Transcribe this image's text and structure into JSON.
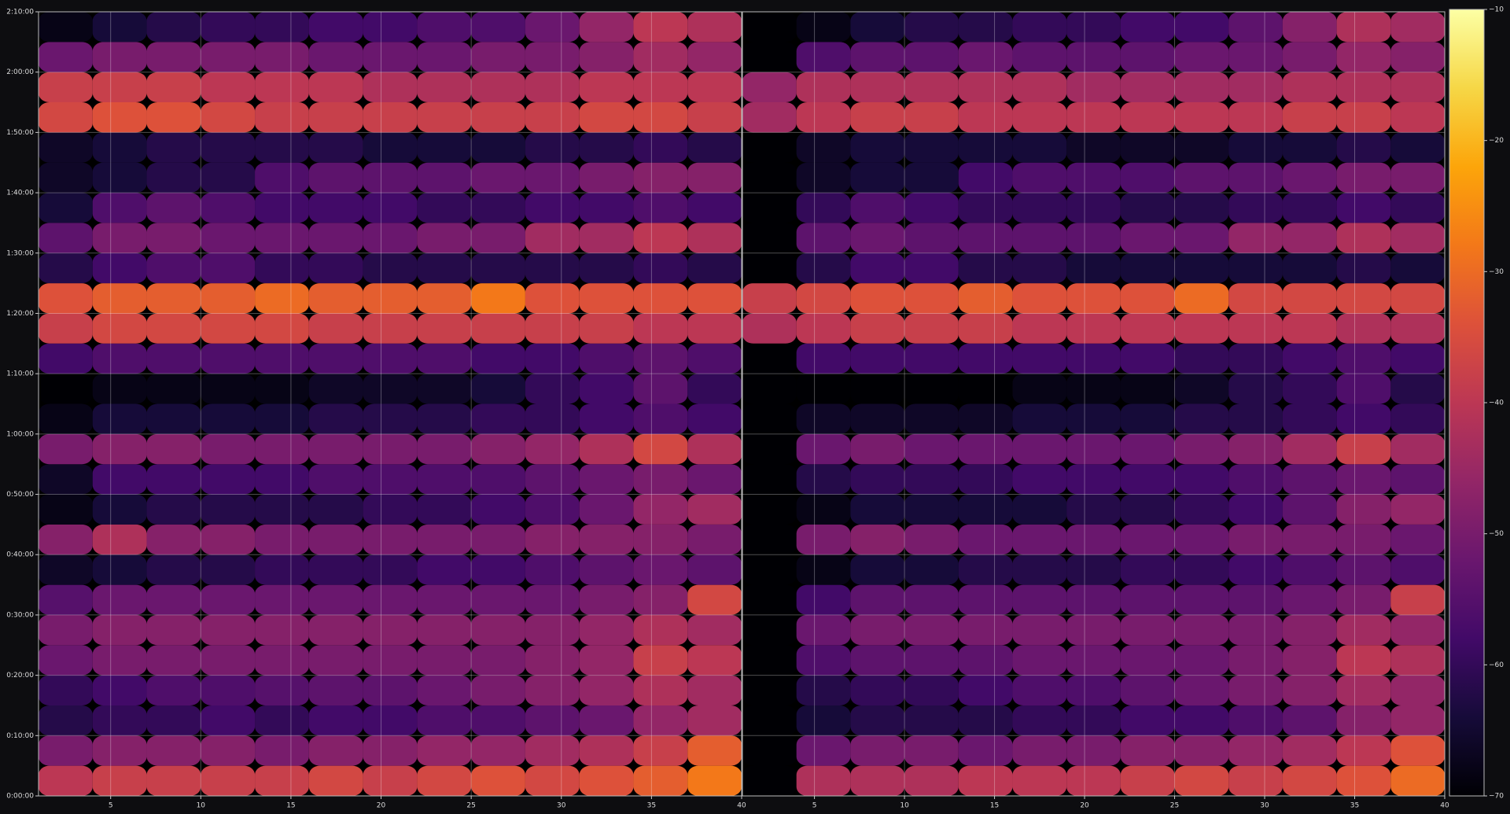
{
  "chart_data": [
    {
      "type": "heatmap",
      "colormap": "inferno",
      "clim": [
        -70,
        -10
      ],
      "grid": true,
      "show_ytick_labels": true,
      "xlim": [
        1,
        40
      ],
      "ylim": [
        0,
        130
      ],
      "xticks": [
        5,
        10,
        15,
        20,
        25,
        30,
        35,
        40
      ],
      "yticks": [
        {
          "value": 0,
          "label": "0:00:00"
        },
        {
          "value": 10,
          "label": "0:10:00"
        },
        {
          "value": 20,
          "label": "0:20:00"
        },
        {
          "value": 30,
          "label": "0:30:00"
        },
        {
          "value": 40,
          "label": "0:40:00"
        },
        {
          "value": 50,
          "label": "0:50:00"
        },
        {
          "value": 60,
          "label": "1:00:00"
        },
        {
          "value": 70,
          "label": "1:10:00"
        },
        {
          "value": 80,
          "label": "1:20:00"
        },
        {
          "value": 90,
          "label": "1:30:00"
        },
        {
          "value": 100,
          "label": "1:40:00"
        },
        {
          "value": 110,
          "label": "1:50:00"
        },
        {
          "value": 120,
          "label": "2:00:00"
        },
        {
          "value": 130,
          "label": "2:10:00"
        }
      ],
      "x": [
        2.5,
        5.5,
        8.5,
        11.5,
        14.5,
        17.5,
        20.5,
        23.5,
        26.5,
        29.5,
        32.5,
        35.5,
        38.5
      ],
      "y": [
        2.5,
        7.5,
        12.5,
        17.5,
        22.5,
        27.5,
        32.5,
        37.5,
        42.5,
        47.5,
        52.5,
        57.5,
        62.5,
        67.5,
        72.5,
        77.5,
        82.5,
        87.5,
        92.5,
        97.5,
        102.5,
        107.5,
        112.5,
        117.5,
        122.5,
        127.5
      ],
      "values": [
        [
          -40,
          -38,
          -38,
          -38,
          -38,
          -36,
          -38,
          -36,
          -34,
          -36,
          -34,
          -32,
          -28
        ],
        [
          -50,
          -48,
          -48,
          -48,
          -50,
          -48,
          -48,
          -46,
          -46,
          -44,
          -42,
          -38,
          -32
        ],
        [
          -62,
          -60,
          -60,
          -58,
          -60,
          -58,
          -58,
          -56,
          -56,
          -54,
          -52,
          -46,
          -44
        ],
        [
          -60,
          -58,
          -56,
          -56,
          -55,
          -54,
          -54,
          -52,
          -50,
          -48,
          -46,
          -42,
          -44
        ],
        [
          -52,
          -50,
          -50,
          -50,
          -50,
          -50,
          -50,
          -50,
          -50,
          -48,
          -46,
          -38,
          -40
        ],
        [
          -50,
          -48,
          -48,
          -48,
          -48,
          -48,
          -48,
          -48,
          -48,
          -48,
          -46,
          -42,
          -44
        ],
        [
          -55,
          -52,
          -52,
          -52,
          -52,
          -52,
          -52,
          -52,
          -52,
          -52,
          -50,
          -48,
          -36
        ],
        [
          -66,
          -64,
          -62,
          -62,
          -60,
          -60,
          -60,
          -58,
          -58,
          -56,
          -54,
          -52,
          -54
        ],
        [
          -48,
          -42,
          -48,
          -48,
          -50,
          -50,
          -50,
          -50,
          -50,
          -48,
          -48,
          -48,
          -50
        ],
        [
          -68,
          -64,
          -62,
          -62,
          -62,
          -62,
          -60,
          -60,
          -58,
          -56,
          -52,
          -46,
          -44
        ],
        [
          -66,
          -58,
          -58,
          -58,
          -58,
          -56,
          -56,
          -56,
          -56,
          -54,
          -52,
          -50,
          -52
        ],
        [
          -50,
          -48,
          -48,
          -50,
          -50,
          -50,
          -50,
          -50,
          -48,
          -46,
          -42,
          -36,
          -42
        ],
        [
          -68,
          -64,
          -64,
          -64,
          -64,
          -62,
          -62,
          -62,
          -60,
          -60,
          -58,
          -56,
          -58
        ],
        [
          -70,
          -68,
          -68,
          -68,
          -68,
          -66,
          -66,
          -66,
          -64,
          -60,
          -58,
          -54,
          -60
        ],
        [
          -58,
          -56,
          -56,
          -56,
          -56,
          -56,
          -56,
          -56,
          -58,
          -58,
          -56,
          -54,
          -56
        ],
        [
          -38,
          -36,
          -36,
          -36,
          -36,
          -38,
          -38,
          -38,
          -38,
          -38,
          -38,
          -40,
          -40
        ],
        [
          -34,
          -32,
          -32,
          -32,
          -30,
          -32,
          -32,
          -32,
          -28,
          -34,
          -34,
          -34,
          -34
        ],
        [
          -62,
          -58,
          -56,
          -56,
          -60,
          -60,
          -62,
          -62,
          -62,
          -62,
          -62,
          -60,
          -62
        ],
        [
          -54,
          -50,
          -50,
          -52,
          -52,
          -52,
          -52,
          -50,
          -50,
          -44,
          -44,
          -40,
          -42
        ],
        [
          -64,
          -56,
          -54,
          -56,
          -58,
          -58,
          -58,
          -60,
          -60,
          -58,
          -58,
          -56,
          -58
        ],
        [
          -66,
          -64,
          -62,
          -62,
          -56,
          -54,
          -54,
          -54,
          -52,
          -52,
          -50,
          -48,
          -48
        ],
        [
          -66,
          -64,
          -62,
          -62,
          -62,
          -62,
          -64,
          -64,
          -64,
          -62,
          -62,
          -60,
          -62
        ],
        [
          -36,
          -34,
          -34,
          -36,
          -38,
          -38,
          -38,
          -38,
          -38,
          -38,
          -36,
          -36,
          -38
        ],
        [
          -38,
          -38,
          -38,
          -40,
          -40,
          -40,
          -42,
          -42,
          -42,
          -42,
          -40,
          -40,
          -40
        ],
        [
          -52,
          -50,
          -50,
          -50,
          -50,
          -52,
          -52,
          -52,
          -50,
          -50,
          -48,
          -44,
          -46
        ],
        [
          -68,
          -64,
          -62,
          -60,
          -60,
          -58,
          -58,
          -56,
          -56,
          -52,
          -46,
          -40,
          -42
        ]
      ]
    },
    {
      "type": "heatmap",
      "colormap": "inferno",
      "clim": [
        -70,
        -10
      ],
      "grid": true,
      "show_ytick_labels": false,
      "xlim": [
        1,
        40
      ],
      "ylim": [
        0,
        130
      ],
      "xticks": [
        5,
        10,
        15,
        20,
        25,
        30,
        35,
        40
      ],
      "yticks": [
        0,
        10,
        20,
        30,
        40,
        50,
        60,
        70,
        80,
        90,
        100,
        110,
        120,
        130
      ],
      "x": [
        2.5,
        5.5,
        8.5,
        11.5,
        14.5,
        17.5,
        20.5,
        23.5,
        26.5,
        29.5,
        32.5,
        35.5,
        38.5
      ],
      "y": [
        2.5,
        7.5,
        12.5,
        17.5,
        22.5,
        27.5,
        32.5,
        37.5,
        42.5,
        47.5,
        52.5,
        57.5,
        62.5,
        67.5,
        72.5,
        77.5,
        82.5,
        87.5,
        92.5,
        97.5,
        102.5,
        107.5,
        112.5,
        117.5,
        122.5,
        127.5
      ],
      "values": [
        [
          -70,
          -42,
          -42,
          -42,
          -40,
          -40,
          -40,
          -38,
          -36,
          -38,
          -36,
          -34,
          -30
        ],
        [
          -70,
          -52,
          -50,
          -50,
          -52,
          -50,
          -50,
          -48,
          -48,
          -46,
          -44,
          -40,
          -34
        ],
        [
          -70,
          -64,
          -62,
          -62,
          -62,
          -60,
          -60,
          -58,
          -58,
          -56,
          -54,
          -48,
          -46
        ],
        [
          -70,
          -62,
          -60,
          -60,
          -58,
          -56,
          -56,
          -54,
          -52,
          -50,
          -48,
          -44,
          -46
        ],
        [
          -70,
          -56,
          -54,
          -54,
          -54,
          -52,
          -52,
          -52,
          -52,
          -50,
          -48,
          -40,
          -42
        ],
        [
          -70,
          -52,
          -50,
          -50,
          -50,
          -50,
          -50,
          -50,
          -50,
          -50,
          -48,
          -44,
          -46
        ],
        [
          -70,
          -58,
          -54,
          -54,
          -54,
          -54,
          -54,
          -54,
          -54,
          -54,
          -52,
          -50,
          -38
        ],
        [
          -70,
          -68,
          -64,
          -64,
          -62,
          -62,
          -62,
          -60,
          -60,
          -58,
          -56,
          -54,
          -56
        ],
        [
          -70,
          -50,
          -48,
          -50,
          -52,
          -52,
          -52,
          -52,
          -52,
          -50,
          -50,
          -50,
          -52
        ],
        [
          -70,
          -68,
          -64,
          -64,
          -64,
          -64,
          -62,
          -62,
          -60,
          -58,
          -54,
          -48,
          -46
        ],
        [
          -70,
          -62,
          -60,
          -60,
          -60,
          -58,
          -58,
          -58,
          -58,
          -56,
          -54,
          -52,
          -54
        ],
        [
          -70,
          -52,
          -50,
          -52,
          -52,
          -52,
          -52,
          -52,
          -50,
          -48,
          -44,
          -38,
          -44
        ],
        [
          -70,
          -66,
          -66,
          -66,
          -66,
          -64,
          -64,
          -64,
          -62,
          -62,
          -60,
          -58,
          -60
        ],
        [
          -70,
          -70,
          -70,
          -70,
          -70,
          -68,
          -68,
          -68,
          -66,
          -62,
          -60,
          -56,
          -62
        ],
        [
          -70,
          -58,
          -58,
          -58,
          -58,
          -58,
          -58,
          -58,
          -60,
          -60,
          -58,
          -56,
          -58
        ],
        [
          -42,
          -40,
          -38,
          -38,
          -38,
          -40,
          -40,
          -40,
          -40,
          -40,
          -40,
          -42,
          -42
        ],
        [
          -38,
          -36,
          -34,
          -34,
          -32,
          -34,
          -34,
          -34,
          -30,
          -36,
          -36,
          -36,
          -36
        ],
        [
          -70,
          -62,
          -58,
          -58,
          -62,
          -62,
          -64,
          -64,
          -64,
          -64,
          -64,
          -62,
          -64
        ],
        [
          -70,
          -54,
          -52,
          -54,
          -54,
          -54,
          -54,
          -52,
          -52,
          -46,
          -46,
          -42,
          -44
        ],
        [
          -70,
          -60,
          -56,
          -58,
          -60,
          -60,
          -60,
          -62,
          -62,
          -60,
          -60,
          -58,
          -60
        ],
        [
          -70,
          -66,
          -64,
          -64,
          -58,
          -56,
          -56,
          -56,
          -54,
          -54,
          -52,
          -50,
          -50
        ],
        [
          -70,
          -66,
          -64,
          -64,
          -64,
          -64,
          -66,
          -66,
          -66,
          -64,
          -64,
          -62,
          -64
        ],
        [
          -44,
          -40,
          -38,
          -38,
          -40,
          -40,
          -40,
          -40,
          -40,
          -40,
          -38,
          -38,
          -40
        ],
        [
          -46,
          -42,
          -42,
          -42,
          -42,
          -42,
          -44,
          -44,
          -44,
          -44,
          -42,
          -42,
          -42
        ],
        [
          -70,
          -56,
          -54,
          -54,
          -52,
          -54,
          -54,
          -54,
          -52,
          -52,
          -50,
          -46,
          -48
        ],
        [
          -70,
          -68,
          -64,
          -62,
          -62,
          -60,
          -60,
          -58,
          -58,
          -54,
          -48,
          -42,
          -44
        ]
      ],
      "colorbar": {
        "lim": [
          -70,
          -10
        ],
        "ticks": [
          {
            "value": -10,
            "label": "−10"
          },
          {
            "value": -20,
            "label": "−20"
          },
          {
            "value": -30,
            "label": "−30"
          },
          {
            "value": -40,
            "label": "−40"
          },
          {
            "value": -50,
            "label": "−50"
          },
          {
            "value": -60,
            "label": "−60"
          },
          {
            "value": -70,
            "label": "−70"
          }
        ]
      }
    }
  ]
}
